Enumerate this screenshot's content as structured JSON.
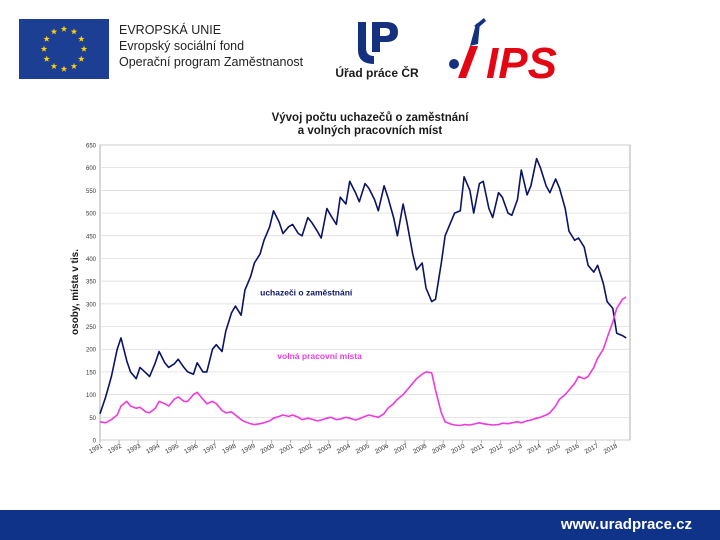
{
  "header": {
    "eu_lines": [
      "EVROPSKÁ UNIE",
      "Evropský sociální fond",
      "Operační program Zaměstnanost"
    ],
    "upcr_label": "Úřad práce ČR",
    "ips_logo_text": "IPS"
  },
  "footer": {
    "url": "www.uradprace.cz"
  },
  "colors": {
    "footer_bg": "#10338a",
    "series_applicants": "#0b1463",
    "series_vacancies": "#ee3bdc",
    "eu_blue": "#1c3f94",
    "eu_star": "#ffd200",
    "ips_red": "#e30613"
  },
  "chart_data": {
    "type": "line",
    "title": "Vývoj počtu uchazečů o zaměstnání a volných pracovních míst",
    "title_lines": [
      "Vývoj počtu uchazečů o zaměstnání",
      "a volných pracovních míst"
    ],
    "xlabel": "",
    "ylabel": "osoby, místa v tis.",
    "ylim": [
      0,
      650
    ],
    "yticks": [
      0,
      50,
      100,
      150,
      200,
      250,
      300,
      350,
      400,
      450,
      500,
      550,
      600,
      650
    ],
    "xlim": [
      1991,
      2018.8
    ],
    "xticks": [
      "1991",
      "1992",
      "1993",
      "1994",
      "1995",
      "1996",
      "1997",
      "1998",
      "1999",
      "2000",
      "2001",
      "2002",
      "2003",
      "2004",
      "2005",
      "2006",
      "2007",
      "2008",
      "2009",
      "2010",
      "2011",
      "2012",
      "2013",
      "2014",
      "2015",
      "2016",
      "2017",
      "2018"
    ],
    "grid": true,
    "legend": "inline labels",
    "series": [
      {
        "name": "uchazeči o zaměstnání",
        "x": [
          1991.0,
          1991.3,
          1991.6,
          1991.9,
          1992.1,
          1992.4,
          1992.6,
          1992.9,
          1993.1,
          1993.4,
          1993.6,
          1993.9,
          1994.1,
          1994.4,
          1994.6,
          1994.9,
          1995.1,
          1995.4,
          1995.6,
          1995.9,
          1996.1,
          1996.4,
          1996.6,
          1996.9,
          1997.1,
          1997.4,
          1997.6,
          1997.9,
          1998.1,
          1998.4,
          1998.6,
          1998.9,
          1999.1,
          1999.4,
          1999.6,
          1999.9,
          2000.1,
          2000.4,
          2000.6,
          2000.9,
          2001.1,
          2001.4,
          2001.6,
          2001.9,
          2002.1,
          2002.4,
          2002.6,
          2002.9,
          2003.1,
          2003.4,
          2003.6,
          2003.9,
          2004.1,
          2004.4,
          2004.6,
          2004.9,
          2005.1,
          2005.4,
          2005.6,
          2005.9,
          2006.1,
          2006.4,
          2006.6,
          2006.9,
          2007.1,
          2007.4,
          2007.6,
          2007.9,
          2008.1,
          2008.4,
          2008.6,
          2008.9,
          2009.1,
          2009.4,
          2009.6,
          2009.9,
          2010.1,
          2010.4,
          2010.6,
          2010.9,
          2011.1,
          2011.4,
          2011.6,
          2011.9,
          2012.1,
          2012.4,
          2012.6,
          2012.9,
          2013.1,
          2013.4,
          2013.6,
          2013.9,
          2014.1,
          2014.4,
          2014.6,
          2014.9,
          2015.1,
          2015.4,
          2015.6,
          2015.9,
          2016.1,
          2016.4,
          2016.6,
          2016.9,
          2017.1,
          2017.4,
          2017.6,
          2017.9,
          2018.1,
          2018.4,
          2018.6
        ],
        "values": [
          58,
          95,
          140,
          200,
          225,
          175,
          150,
          135,
          160,
          148,
          140,
          170,
          195,
          170,
          160,
          168,
          178,
          160,
          150,
          145,
          170,
          150,
          150,
          200,
          210,
          195,
          240,
          280,
          295,
          275,
          330,
          360,
          390,
          410,
          440,
          470,
          505,
          480,
          455,
          470,
          475,
          455,
          450,
          490,
          480,
          460,
          445,
          510,
          495,
          475,
          535,
          520,
          570,
          545,
          525,
          565,
          555,
          530,
          505,
          560,
          535,
          490,
          450,
          520,
          480,
          410,
          375,
          390,
          335,
          305,
          310,
          390,
          450,
          480,
          500,
          505,
          580,
          550,
          500,
          565,
          570,
          510,
          490,
          545,
          535,
          500,
          495,
          530,
          595,
          540,
          560,
          620,
          600,
          560,
          545,
          575,
          555,
          510,
          460,
          440,
          445,
          425,
          385,
          370,
          385,
          345,
          305,
          290,
          235,
          230,
          225
        ]
      },
      {
        "name": "volná pracovní místa",
        "x": [
          1991.0,
          1991.3,
          1991.6,
          1991.9,
          1992.1,
          1992.4,
          1992.6,
          1992.9,
          1993.1,
          1993.4,
          1993.6,
          1993.9,
          1994.1,
          1994.4,
          1994.6,
          1994.9,
          1995.1,
          1995.4,
          1995.6,
          1995.9,
          1996.1,
          1996.4,
          1996.6,
          1996.9,
          1997.1,
          1997.4,
          1997.6,
          1997.9,
          1998.1,
          1998.4,
          1998.6,
          1998.9,
          1999.1,
          1999.4,
          1999.6,
          1999.9,
          2000.1,
          2000.4,
          2000.6,
          2000.9,
          2001.1,
          2001.4,
          2001.6,
          2001.9,
          2002.1,
          2002.4,
          2002.6,
          2002.9,
          2003.1,
          2003.4,
          2003.6,
          2003.9,
          2004.1,
          2004.4,
          2004.6,
          2004.9,
          2005.1,
          2005.4,
          2005.6,
          2005.9,
          2006.1,
          2006.4,
          2006.6,
          2006.9,
          2007.1,
          2007.4,
          2007.6,
          2007.9,
          2008.1,
          2008.4,
          2008.6,
          2008.9,
          2009.1,
          2009.4,
          2009.6,
          2009.9,
          2010.1,
          2010.4,
          2010.6,
          2010.9,
          2011.1,
          2011.4,
          2011.6,
          2011.9,
          2012.1,
          2012.4,
          2012.6,
          2012.9,
          2013.1,
          2013.4,
          2013.6,
          2013.9,
          2014.1,
          2014.4,
          2014.6,
          2014.9,
          2015.1,
          2015.4,
          2015.6,
          2015.9,
          2016.1,
          2016.4,
          2016.6,
          2016.9,
          2017.1,
          2017.4,
          2017.6,
          2017.9,
          2018.1,
          2018.4,
          2018.6
        ],
        "values": [
          40,
          38,
          45,
          55,
          75,
          85,
          75,
          70,
          72,
          62,
          60,
          70,
          85,
          80,
          75,
          90,
          95,
          85,
          85,
          100,
          105,
          90,
          80,
          85,
          80,
          65,
          60,
          62,
          55,
          45,
          40,
          36,
          34,
          36,
          38,
          42,
          48,
          52,
          55,
          52,
          55,
          50,
          45,
          48,
          46,
          42,
          44,
          48,
          50,
          45,
          46,
          50,
          48,
          44,
          47,
          52,
          55,
          52,
          50,
          58,
          70,
          80,
          90,
          100,
          110,
          125,
          135,
          145,
          150,
          148,
          110,
          60,
          40,
          35,
          33,
          32,
          34,
          33,
          35,
          38,
          36,
          34,
          33,
          34,
          37,
          36,
          38,
          40,
          38,
          42,
          44,
          48,
          50,
          55,
          60,
          75,
          90,
          100,
          110,
          125,
          140,
          135,
          140,
          160,
          180,
          200,
          225,
          260,
          290,
          310,
          315
        ]
      }
    ],
    "annotations": [
      {
        "text": "uchazeči o zaměstnání",
        "x": 1999.4,
        "y": 318
      },
      {
        "text": "volná pracovní místa",
        "x": 2000.3,
        "y": 178
      }
    ]
  }
}
